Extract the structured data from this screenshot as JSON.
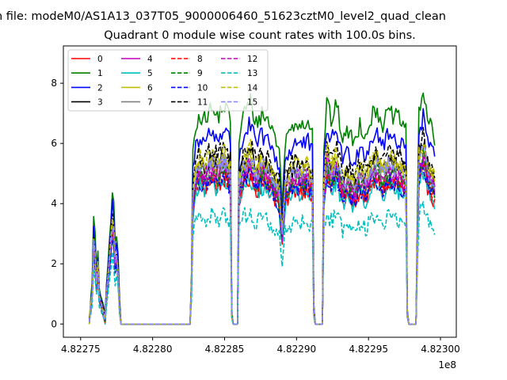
{
  "header": {
    "title": "n file: modeM0/AS1A13_037T05_9000006460_51623cztM0_level2_quad_clean",
    "subtitle": "Quadrant 0 module wise count rates with 100.0s bins."
  },
  "chart_data": {
    "type": "line",
    "x_tick_labels": [
      "4.82275",
      "4.82280",
      "4.82285",
      "4.82290",
      "4.82295",
      "4.82300"
    ],
    "x_ticks": [
      482275000,
      482280000,
      482285000,
      482290000,
      482295000,
      482300000
    ],
    "x_offset_label": "1e8",
    "y_ticks": [
      0,
      2,
      4,
      6,
      8
    ],
    "xlim": [
      482273800,
      482301100
    ],
    "ylim": [
      -0.44,
      9.24
    ],
    "legend_position": "upper left",
    "legend_columns": 4,
    "series": [
      {
        "name": "0",
        "color": "#ff0000",
        "style": "solid",
        "scale": 0.82
      },
      {
        "name": "1",
        "color": "#008000",
        "style": "solid",
        "scale": 1.23
      },
      {
        "name": "2",
        "color": "#0000ff",
        "style": "solid",
        "scale": 1.1
      },
      {
        "name": "3",
        "color": "#000000",
        "style": "solid",
        "scale": 0.95
      },
      {
        "name": "4",
        "color": "#bf00bf",
        "style": "solid",
        "scale": 0.86
      },
      {
        "name": "5",
        "color": "#00bfbf",
        "style": "solid",
        "scale": 0.8
      },
      {
        "name": "6",
        "color": "#bfbf00",
        "style": "solid",
        "scale": 0.93
      },
      {
        "name": "7",
        "color": "#808080",
        "style": "solid",
        "scale": 0.88
      },
      {
        "name": "8",
        "color": "#ff0000",
        "style": "dashed",
        "scale": 0.84
      },
      {
        "name": "9",
        "color": "#008000",
        "style": "dashed",
        "scale": 0.87
      },
      {
        "name": "10",
        "color": "#0000ff",
        "style": "dashed",
        "scale": 0.83
      },
      {
        "name": "11",
        "color": "#000000",
        "style": "dashed",
        "scale": 1.0
      },
      {
        "name": "12",
        "color": "#bf00bf",
        "style": "dashed",
        "scale": 0.89
      },
      {
        "name": "13",
        "color": "#00bfbf",
        "style": "dashed",
        "scale": 0.62
      },
      {
        "name": "14",
        "color": "#bfbf00",
        "style": "dashed",
        "scale": 0.97
      },
      {
        "name": "15",
        "color": "#8888ff",
        "style": "dashed",
        "scale": 0.92
      }
    ],
    "base_profile": [
      [
        482275600,
        0.1
      ],
      [
        482275700,
        0.6
      ],
      [
        482275800,
        1.1
      ],
      [
        482275900,
        2.9
      ],
      [
        482276000,
        2.4
      ],
      [
        482276100,
        1.4
      ],
      [
        482276200,
        2.0
      ],
      [
        482276300,
        1.0
      ],
      [
        482276500,
        0.6
      ],
      [
        482276700,
        0.15
      ],
      [
        482276800,
        1.1
      ],
      [
        482277000,
        2.2
      ],
      [
        482277200,
        3.6
      ],
      [
        482277300,
        3.2
      ],
      [
        482277400,
        2.2
      ],
      [
        482277500,
        2.4
      ],
      [
        482277600,
        1.9
      ],
      [
        482277700,
        0.6
      ],
      [
        482277800,
        0.0
      ],
      [
        482278000,
        0.0
      ],
      [
        482282600,
        0.0
      ],
      [
        482282700,
        1.4
      ],
      [
        482282800,
        4.6
      ],
      [
        482283000,
        5.4
      ],
      [
        482283300,
        5.7
      ],
      [
        482283600,
        5.5
      ],
      [
        482284000,
        5.8
      ],
      [
        482284500,
        5.6
      ],
      [
        482285000,
        5.9
      ],
      [
        482285400,
        5.5
      ],
      [
        482285500,
        0.4
      ],
      [
        482285600,
        0.0
      ],
      [
        482285900,
        0.0
      ],
      [
        482286000,
        5.0
      ],
      [
        482286400,
        5.8
      ],
      [
        482286800,
        6.0
      ],
      [
        482287200,
        5.4
      ],
      [
        482287600,
        5.7
      ],
      [
        482288000,
        5.5
      ],
      [
        482288400,
        5.2
      ],
      [
        482288800,
        4.7
      ],
      [
        482289000,
        3.2
      ],
      [
        482289200,
        4.9
      ],
      [
        482289600,
        5.3
      ],
      [
        482290000,
        5.5
      ],
      [
        482290400,
        5.4
      ],
      [
        482290800,
        5.5
      ],
      [
        482291100,
        5.2
      ],
      [
        482291200,
        0.5
      ],
      [
        482291300,
        0.0
      ],
      [
        482291800,
        0.0
      ],
      [
        482291900,
        4.8
      ],
      [
        482292100,
        6.0
      ],
      [
        482292400,
        5.5
      ],
      [
        482292800,
        5.9
      ],
      [
        482293200,
        5.0
      ],
      [
        482293600,
        5.2
      ],
      [
        482294000,
        4.9
      ],
      [
        482294400,
        5.4
      ],
      [
        482294800,
        5.1
      ],
      [
        482295200,
        5.6
      ],
      [
        482295600,
        5.8
      ],
      [
        482296000,
        5.4
      ],
      [
        482296400,
        5.7
      ],
      [
        482296800,
        5.6
      ],
      [
        482297200,
        5.5
      ],
      [
        482297600,
        5.3
      ],
      [
        482297700,
        0.4
      ],
      [
        482297800,
        0.0
      ],
      [
        482298300,
        0.0
      ],
      [
        482298500,
        5.8
      ],
      [
        482298800,
        6.3
      ],
      [
        482299100,
        5.6
      ],
      [
        482299400,
        5.2
      ],
      [
        482299600,
        5.0
      ]
    ]
  }
}
